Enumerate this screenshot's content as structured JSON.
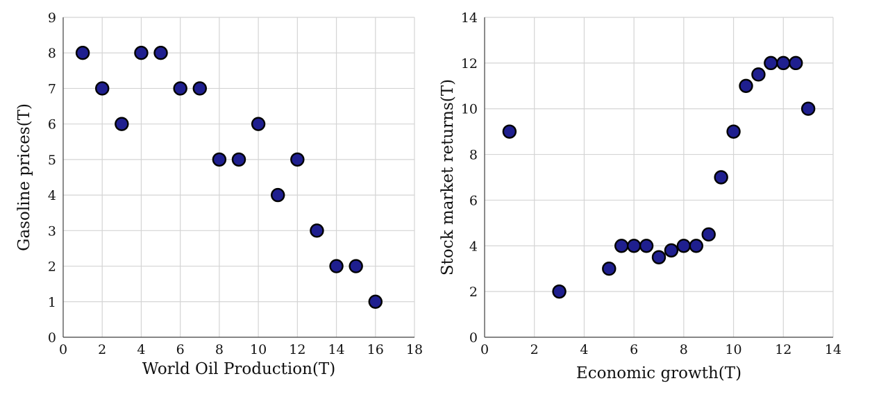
{
  "chart_data": [
    {
      "type": "scatter",
      "title": "",
      "xlabel": "World Oil Production(T)",
      "ylabel": "Gasoline prices(T)",
      "xlim": [
        0,
        18
      ],
      "ylim": [
        0,
        9
      ],
      "xticks": [
        0,
        2,
        4,
        6,
        8,
        10,
        12,
        14,
        16,
        18
      ],
      "yticks": [
        0,
        1,
        2,
        3,
        4,
        5,
        6,
        7,
        8,
        9
      ],
      "grid": true,
      "marker_color": "#1f1f8f",
      "marker_edge_color": "#000000",
      "points": [
        {
          "x": 1,
          "y": 8
        },
        {
          "x": 2,
          "y": 7
        },
        {
          "x": 3,
          "y": 6
        },
        {
          "x": 4,
          "y": 8
        },
        {
          "x": 5,
          "y": 8
        },
        {
          "x": 6,
          "y": 7
        },
        {
          "x": 7,
          "y": 7
        },
        {
          "x": 8,
          "y": 5
        },
        {
          "x": 9,
          "y": 5
        },
        {
          "x": 10,
          "y": 6
        },
        {
          "x": 11,
          "y": 4
        },
        {
          "x": 12,
          "y": 5
        },
        {
          "x": 13,
          "y": 3
        },
        {
          "x": 14,
          "y": 2
        },
        {
          "x": 15,
          "y": 2
        },
        {
          "x": 16,
          "y": 1
        }
      ]
    },
    {
      "type": "scatter",
      "title": "",
      "xlabel": "Economic growth(T)",
      "ylabel": "Stock market returns(T)",
      "xlim": [
        0,
        14
      ],
      "ylim": [
        0,
        14
      ],
      "xticks": [
        0,
        2,
        4,
        6,
        8,
        10,
        12,
        14
      ],
      "yticks": [
        0,
        2,
        4,
        6,
        8,
        10,
        12,
        14
      ],
      "grid": true,
      "marker_color": "#1f1f8f",
      "marker_edge_color": "#000000",
      "points": [
        {
          "x": 1,
          "y": 9
        },
        {
          "x": 3,
          "y": 2
        },
        {
          "x": 5,
          "y": 3
        },
        {
          "x": 5.5,
          "y": 4
        },
        {
          "x": 6,
          "y": 4
        },
        {
          "x": 6.5,
          "y": 4
        },
        {
          "x": 7,
          "y": 3.5
        },
        {
          "x": 7.5,
          "y": 3.8
        },
        {
          "x": 8,
          "y": 4
        },
        {
          "x": 8.5,
          "y": 4
        },
        {
          "x": 9,
          "y": 4.5
        },
        {
          "x": 9.5,
          "y": 7
        },
        {
          "x": 10,
          "y": 9
        },
        {
          "x": 10.5,
          "y": 11
        },
        {
          "x": 11,
          "y": 11.5
        },
        {
          "x": 11.5,
          "y": 12
        },
        {
          "x": 12,
          "y": 12
        },
        {
          "x": 12.5,
          "y": 12
        },
        {
          "x": 13,
          "y": 10
        }
      ]
    }
  ]
}
